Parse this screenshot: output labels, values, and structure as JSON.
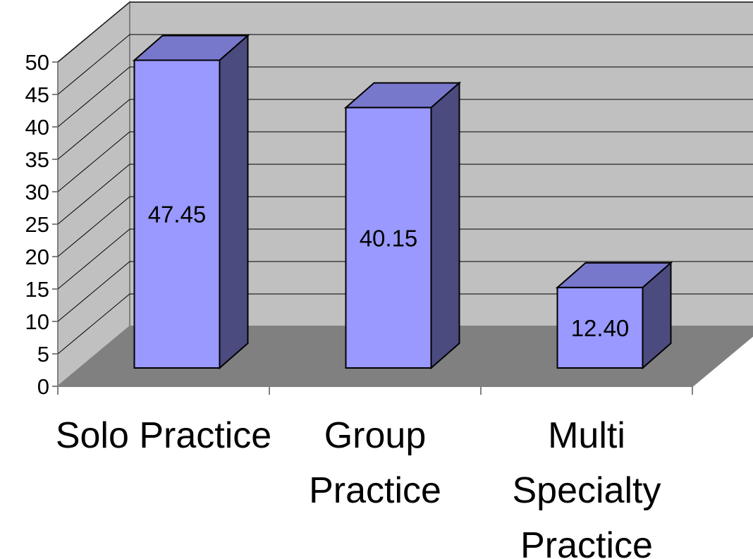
{
  "chart_data": {
    "type": "bar",
    "categories": [
      [
        "Solo Practice"
      ],
      [
        "Group",
        "Practice"
      ],
      [
        "Multi",
        "Specialty",
        "Practice"
      ]
    ],
    "values": [
      47.45,
      40.15,
      12.4
    ],
    "value_labels": [
      "47.45",
      "40.15",
      "12.40"
    ],
    "title": "",
    "xlabel": "",
    "ylabel": "",
    "ylim": [
      0,
      50
    ],
    "y_ticks": [
      "0",
      "5",
      "10",
      "15",
      "20",
      "25",
      "30",
      "35",
      "40",
      "45",
      "50"
    ],
    "grid": true,
    "legend": "none",
    "style": "3d-column"
  },
  "colors": {
    "bar_front": "#9999ff",
    "bar_top": "#7777cc",
    "bar_side": "#4b4b80",
    "back_wall": "#c0c0c0",
    "side_wall": "#c0c0c0",
    "floor": "#808080",
    "gridline": "#000000",
    "axis": "#808080"
  }
}
